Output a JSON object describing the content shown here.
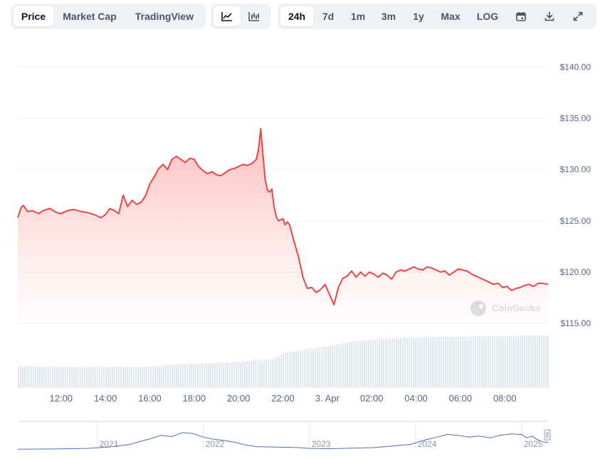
{
  "toolbar": {
    "view_tabs": [
      {
        "label": "Price",
        "active": true
      },
      {
        "label": "Market Cap",
        "active": false
      },
      {
        "label": "TradingView",
        "active": false
      }
    ],
    "chart_type_buttons": [
      {
        "icon": "line-chart-icon",
        "active": true
      },
      {
        "icon": "candlestick-chart-icon",
        "active": false
      }
    ],
    "range_tabs": [
      {
        "label": "24h",
        "active": true
      },
      {
        "label": "7d",
        "active": false
      },
      {
        "label": "1m",
        "active": false
      },
      {
        "label": "3m",
        "active": false
      },
      {
        "label": "1y",
        "active": false
      },
      {
        "label": "Max",
        "active": false
      },
      {
        "label": "LOG",
        "active": false
      }
    ],
    "tool_icons": [
      "calendar-icon",
      "download-icon",
      "expand-icon"
    ]
  },
  "watermark": "CoinGecko",
  "colors": {
    "line": "#ef4444",
    "fill_top": "#fca5a5",
    "volume": "#e2e8f0",
    "navigator_line": "#4a6fb5",
    "grid": "#eef1f5",
    "tab_bg": "#eff2f5"
  },
  "chart_data": {
    "type": "area",
    "y_axis": {
      "ticks": [
        "$140.00",
        "$135.00",
        "$130.00",
        "$125.00",
        "$120.00",
        "$115.00"
      ],
      "tick_values": [
        140,
        135,
        130,
        125,
        120,
        115
      ],
      "ylim": [
        115,
        141
      ]
    },
    "x_axis": {
      "ticks": [
        "12:00",
        "14:00",
        "16:00",
        "18:00",
        "20:00",
        "22:00",
        "3. Apr",
        "02:00",
        "04:00",
        "06:00",
        "08:00"
      ],
      "tick_hours": [
        12,
        14,
        16,
        18,
        20,
        22,
        24,
        26,
        28,
        30,
        32
      ],
      "xlim_hours": [
        10.05,
        33.95
      ]
    },
    "series": [
      {
        "x_hours": [
          10.05,
          10.2,
          10.3,
          10.5,
          10.7,
          11.0,
          11.2,
          11.5,
          11.8,
          12.0,
          12.3,
          12.6,
          12.9,
          13.2,
          13.5,
          13.8,
          14.0,
          14.2,
          14.4,
          14.6,
          14.8,
          15.0,
          15.2,
          15.4,
          15.6,
          15.8,
          16.0,
          16.2,
          16.4,
          16.6,
          16.8,
          17.0,
          17.2,
          17.4,
          17.6,
          17.8,
          18.0,
          18.2,
          18.4,
          18.6,
          18.8,
          19.0,
          19.2,
          19.4,
          19.6,
          19.8,
          20.0,
          20.2,
          20.4,
          20.6,
          20.8,
          20.9,
          21.0,
          21.1,
          21.2,
          21.3,
          21.4,
          21.5,
          21.6,
          21.7,
          21.8,
          22.0,
          22.1,
          22.2,
          22.3,
          22.5,
          22.7,
          22.9,
          23.1,
          23.3,
          23.5,
          23.7,
          23.9,
          24.1,
          24.3,
          24.5,
          24.7,
          24.9,
          25.1,
          25.3,
          25.5,
          25.7,
          25.9,
          26.1,
          26.3,
          26.5,
          26.7,
          26.9,
          27.1,
          27.3,
          27.5,
          27.7,
          27.9,
          28.1,
          28.3,
          28.5,
          28.7,
          28.9,
          29.1,
          29.3,
          29.5,
          29.7,
          29.9,
          30.1,
          30.3,
          30.5,
          30.7,
          30.9,
          31.1,
          31.3,
          31.5,
          31.7,
          31.9,
          32.1,
          32.3,
          32.5,
          32.7,
          32.9,
          33.1,
          33.3,
          33.5,
          33.7,
          33.95
        ],
        "values": [
          125.3,
          126.3,
          126.5,
          125.9,
          126.0,
          125.7,
          126.0,
          126.2,
          125.8,
          125.7,
          126.0,
          126.1,
          125.9,
          125.8,
          125.6,
          125.3,
          125.6,
          126.2,
          126.0,
          125.7,
          127.5,
          126.4,
          127.0,
          126.6,
          126.8,
          127.4,
          128.6,
          129.3,
          130.1,
          130.5,
          130.0,
          131.0,
          131.3,
          131.0,
          130.7,
          131.1,
          131.0,
          130.3,
          129.9,
          129.6,
          129.8,
          129.5,
          129.4,
          129.7,
          130.0,
          130.1,
          130.3,
          130.5,
          130.4,
          130.6,
          131.0,
          132.0,
          134.0,
          131.5,
          129.0,
          128.0,
          127.8,
          128.1,
          126.4,
          125.4,
          125.0,
          125.2,
          124.6,
          124.9,
          124.6,
          123.0,
          121.5,
          119.5,
          118.4,
          118.5,
          118.0,
          118.3,
          118.8,
          117.8,
          116.8,
          118.5,
          119.4,
          119.6,
          120.1,
          119.5,
          120.0,
          119.6,
          120.0,
          119.8,
          119.5,
          119.9,
          119.7,
          119.3,
          120.0,
          120.2,
          120.1,
          120.3,
          120.5,
          120.3,
          120.2,
          120.5,
          120.4,
          120.2,
          120.0,
          120.1,
          119.7,
          120.0,
          120.3,
          120.2,
          120.1,
          119.8,
          119.6,
          119.4,
          119.2,
          119.0,
          118.8,
          118.9,
          118.5,
          118.6,
          118.2,
          118.4,
          118.5,
          118.7,
          118.8,
          118.6,
          118.9,
          118.9,
          118.8
        ]
      }
    ],
    "volume": {
      "x_hours": [
        10.05,
        12.0,
        14.0,
        16.0,
        17.0,
        18.0,
        20.0,
        21.5,
        22.0,
        23.0,
        24.0,
        25.0,
        26.0,
        27.0,
        28.0,
        29.0,
        30.0,
        31.0,
        32.0,
        33.0,
        33.95
      ],
      "relative": [
        0.34,
        0.33,
        0.33,
        0.33,
        0.36,
        0.38,
        0.41,
        0.45,
        0.55,
        0.6,
        0.65,
        0.72,
        0.76,
        0.78,
        0.79,
        0.8,
        0.8,
        0.81,
        0.81,
        0.82,
        0.82
      ]
    },
    "navigator": {
      "labels": [
        "2021",
        "2022",
        "2023",
        "2024",
        "2025"
      ],
      "label_years": [
        2021,
        2022,
        2023,
        2024,
        2025
      ],
      "xlim_years": [
        2020.25,
        2025.25
      ],
      "series_years": [
        2020.25,
        2020.6,
        2020.9,
        2021.1,
        2021.3,
        2021.5,
        2021.6,
        2021.7,
        2021.8,
        2021.9,
        2022.0,
        2022.1,
        2022.2,
        2022.3,
        2022.4,
        2022.5,
        2022.7,
        2022.9,
        2023.0,
        2023.2,
        2023.4,
        2023.6,
        2023.8,
        2023.95,
        2024.1,
        2024.2,
        2024.3,
        2024.4,
        2024.5,
        2024.6,
        2024.7,
        2024.8,
        2024.9,
        2025.0,
        2025.05,
        2025.1,
        2025.15,
        2025.2,
        2025.25
      ],
      "series_relative": [
        0.02,
        0.03,
        0.05,
        0.1,
        0.2,
        0.42,
        0.55,
        0.5,
        0.65,
        0.62,
        0.48,
        0.4,
        0.35,
        0.28,
        0.18,
        0.12,
        0.1,
        0.08,
        0.05,
        0.04,
        0.06,
        0.08,
        0.15,
        0.2,
        0.38,
        0.48,
        0.58,
        0.55,
        0.48,
        0.52,
        0.45,
        0.55,
        0.6,
        0.58,
        0.45,
        0.52,
        0.38,
        0.3,
        0.28
      ]
    }
  }
}
